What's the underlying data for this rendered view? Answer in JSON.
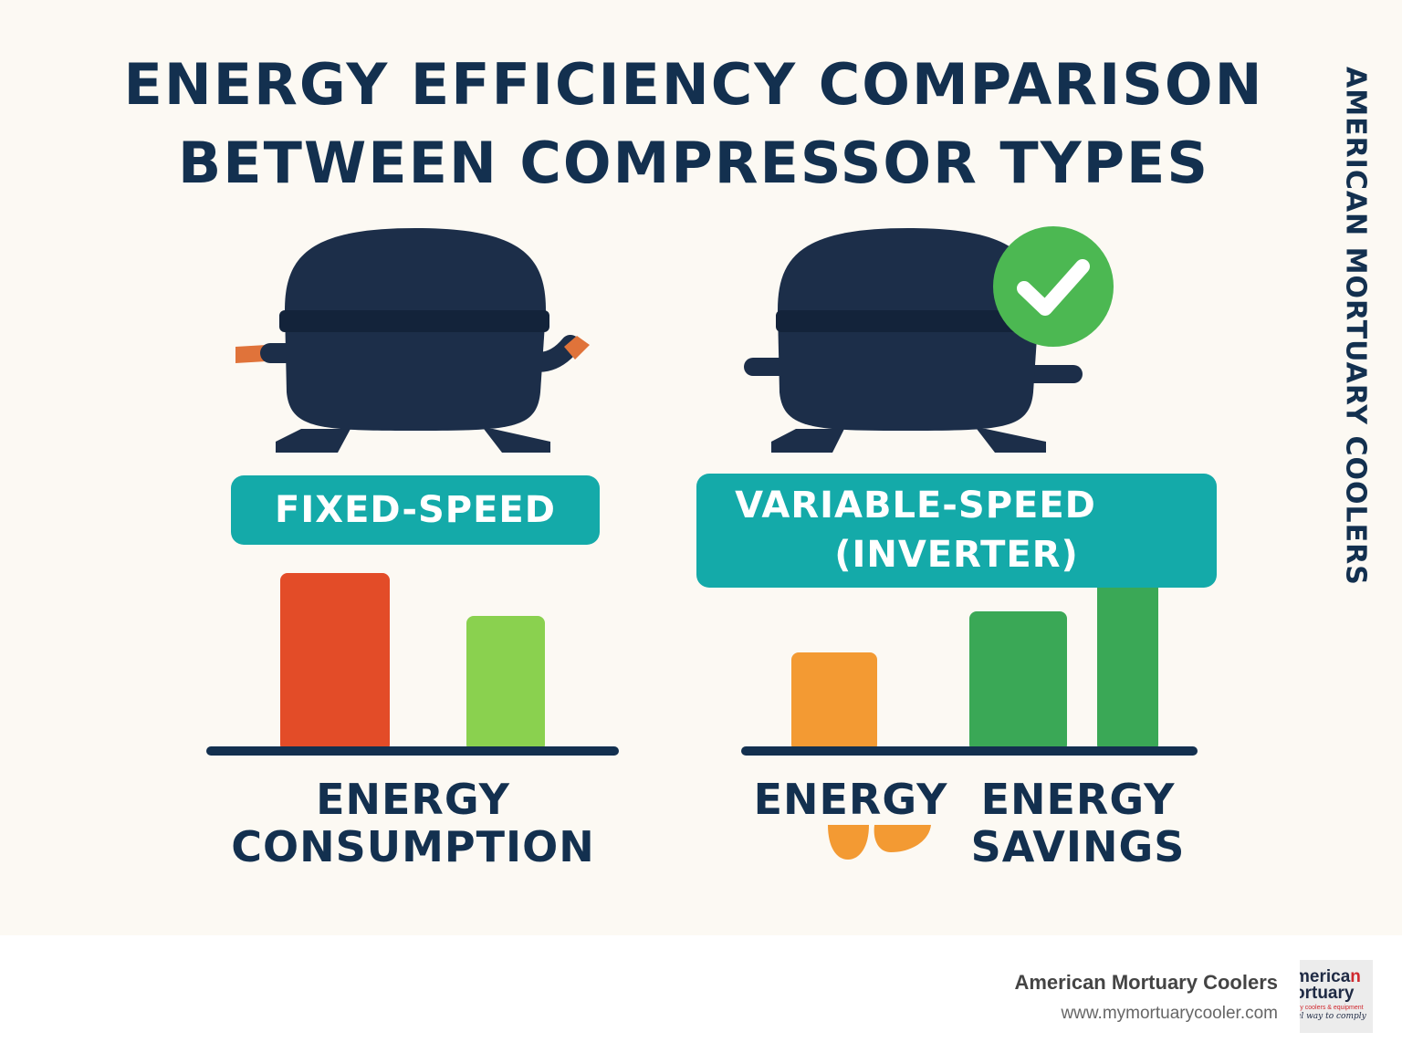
{
  "title_line1": "ENERGY EFFICIENCY COMPARISON",
  "title_line2": "BETWEEN COMPRESSOR TYPES",
  "side_brand": "AMERICAN MORTUARY COOLERS",
  "colors": {
    "navy": "#13304f",
    "compressor": "#1c2e49",
    "teal": "#14aaa9",
    "red": "#e34c28",
    "light_green": "#8ad14f",
    "orange": "#f39a33",
    "green": "#3aa856",
    "check_green": "#4cb852",
    "copper": "#e0733a"
  },
  "left_panel": {
    "label": "FIXED-SPEED",
    "axis_label_line1": "ENERGY",
    "axis_label_line2": "CONSUMPTION",
    "bars": [
      {
        "color": "#e34c28",
        "relative_height": 1.0
      },
      {
        "color": "#8ad14f",
        "relative_height": 0.75
      }
    ]
  },
  "right_panel": {
    "label_line1": "VARIABLE-SPEED",
    "label_line2": "(INVERTER)",
    "check_icon": "checkmark-badge-icon",
    "axis_label_energy": "ENERGY",
    "axis_label_savings_line1": "ENERGY",
    "axis_label_savings_line2": "SAVINGS",
    "bars": [
      {
        "color": "#f39a33",
        "relative_height": 0.53
      },
      {
        "color": "#3aa856",
        "relative_height": 0.76
      },
      {
        "color": "#3aa856",
        "relative_height": 1.0
      }
    ]
  },
  "footer": {
    "company": "American Mortuary Coolers",
    "url": "www.mymortuarycooler.com",
    "logo_line1_a": "merica",
    "logo_line1_b": "n",
    "logo_line2": "ortuary",
    "logo_line3": "ry coolers & equipment",
    "logo_line4": "al way to comply"
  }
}
